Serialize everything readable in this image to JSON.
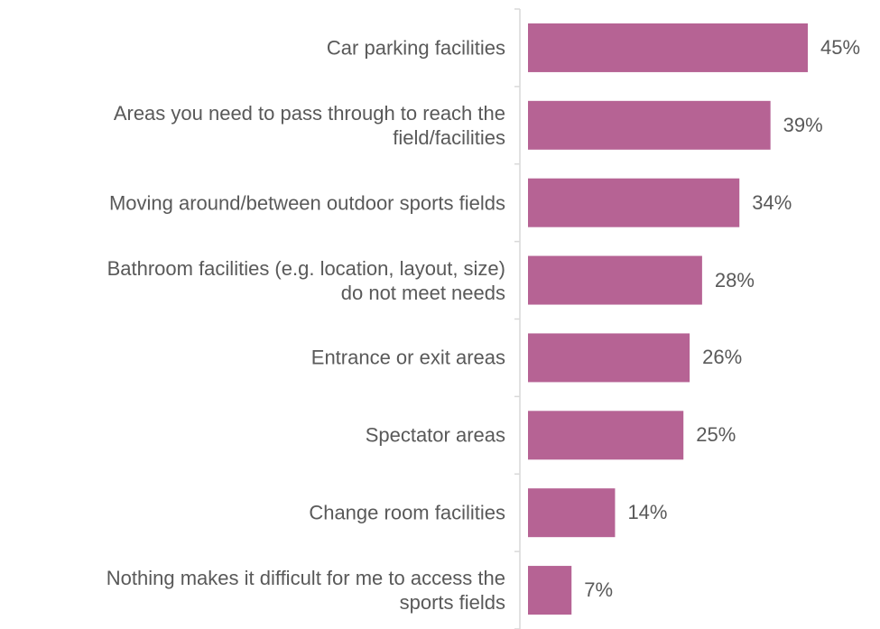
{
  "chart_data": {
    "type": "bar",
    "orientation": "horizontal",
    "categories": [
      "Car parking facilities",
      "Areas you need to pass through to reach the\nfield/facilities",
      "Moving around/between outdoor sports fields",
      "Bathroom facilities (e.g. location, layout, size)\ndo not meet needs",
      "Entrance or exit areas",
      "Spectator areas",
      "Change room facilities",
      "Nothing makes it difficult for me to access the\nsports fields"
    ],
    "values": [
      45,
      39,
      34,
      28,
      26,
      25,
      14,
      7
    ],
    "value_labels": [
      "45%",
      "39%",
      "34%",
      "28%",
      "26%",
      "25%",
      "14%",
      "7%"
    ],
    "color": "#b66394"
  }
}
